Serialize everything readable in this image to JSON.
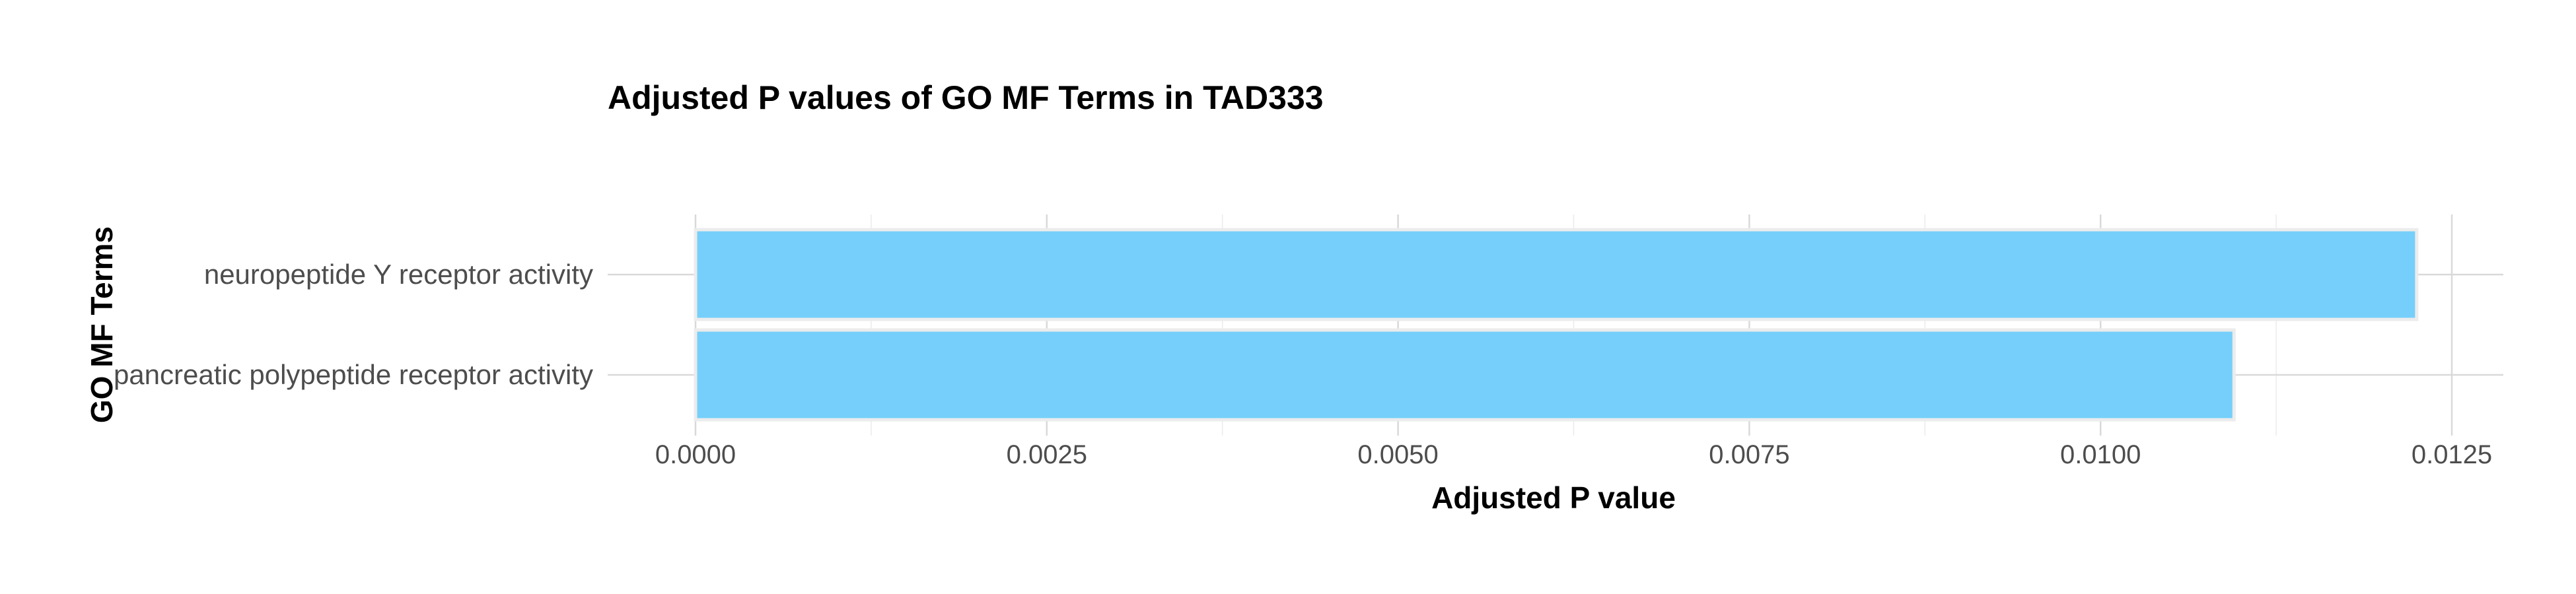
{
  "chart_data": {
    "type": "bar",
    "orientation": "horizontal",
    "title": "Adjusted P values of GO MF Terms in TAD333",
    "xlabel": "Adjusted P value",
    "ylabel": "GO MF Terms",
    "categories": [
      "neuropeptide Y receptor activity",
      "pancreatic polypeptide receptor activity"
    ],
    "values": [
      0.01225,
      0.01095
    ],
    "xlim": [
      0,
      0.0129
    ],
    "xticks": [
      0.0,
      0.0025,
      0.005,
      0.0075,
      0.01,
      0.0125
    ],
    "xtick_labels": [
      "0.0000",
      "0.0025",
      "0.0050",
      "0.0075",
      "0.0100",
      "0.0125"
    ],
    "grid": true,
    "bar_color": "#75cffa",
    "bar_edge_color": "#ececec"
  }
}
